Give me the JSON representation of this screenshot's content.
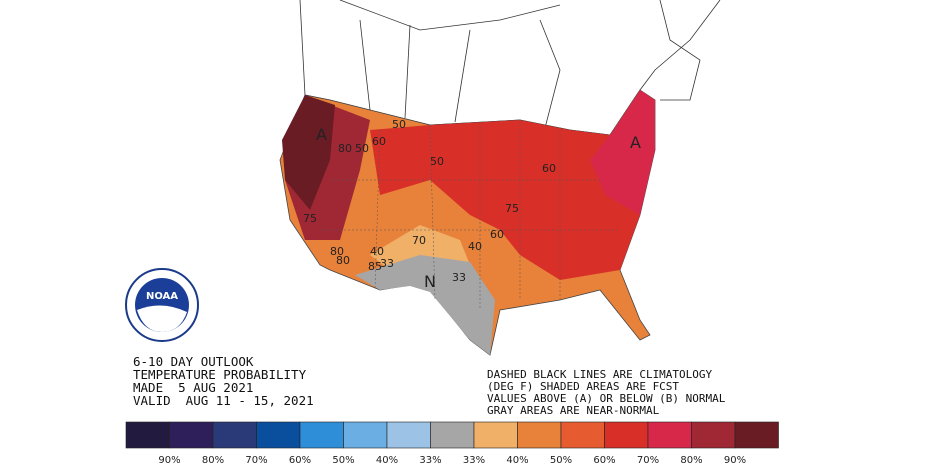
{
  "logo": "NOAA",
  "title_lines": [
    "6-10 DAY OUTLOOK",
    "TEMPERATURE PROBABILITY",
    "MADE  5 AUG 2021",
    "VALID  AUG 11 - 15, 2021"
  ],
  "notes": [
    "DASHED BLACK LINES ARE CLIMATOLOGY",
    "(DEG F) SHADED AREAS ARE FCST",
    "VALUES ABOVE (A) OR BELOW (B) NORMAL",
    "GRAY AREAS ARE NEAR-NORMAL"
  ],
  "legend": {
    "colors": [
      "#231a40",
      "#2e1f5a",
      "#2a3a78",
      "#0a4f9e",
      "#2e8fd8",
      "#6aaee3",
      "#9cc2e6",
      "#a6a6a6",
      "#f0b068",
      "#e8823a",
      "#e65c30",
      "#d83028",
      "#d8284a",
      "#a02834",
      "#6a1c24"
    ],
    "labels": [
      "90%",
      "80%",
      "70%",
      "60%",
      "50%",
      "40%",
      "33%",
      "33%",
      "40%",
      "50%",
      "60%",
      "70%",
      "80%",
      "90%"
    ]
  },
  "map_labels": [
    "A",
    "80",
    "50",
    "60",
    "50",
    "60",
    "A",
    "75",
    "80",
    "40",
    "70",
    "33",
    "85",
    "N",
    "33",
    "40",
    "50",
    "60",
    "80",
    "75"
  ]
}
